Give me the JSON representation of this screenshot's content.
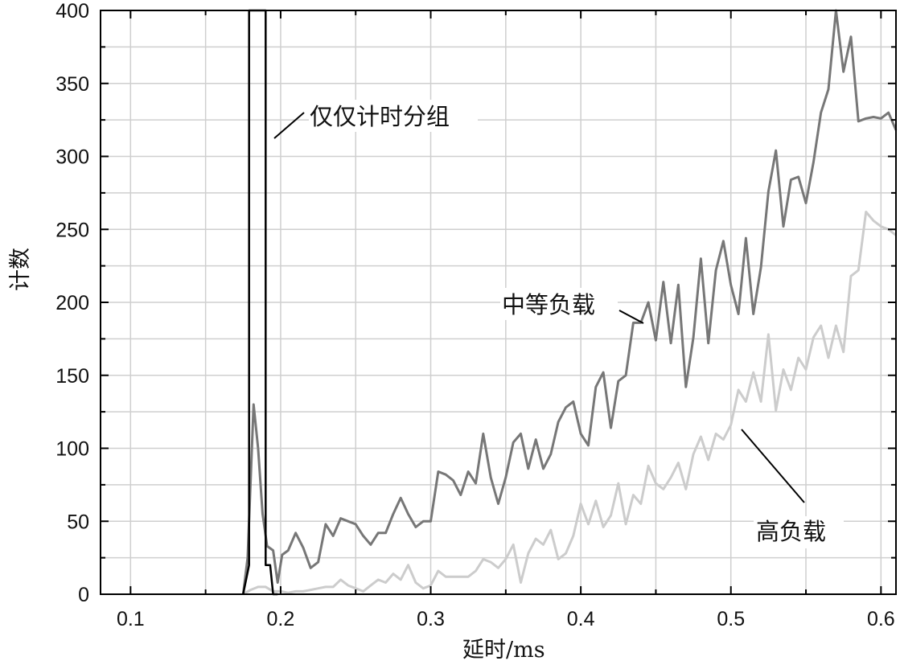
{
  "chart_data": {
    "type": "line",
    "xlabel": "延时/ms",
    "ylabel": "计数",
    "xlim": [
      0.08,
      0.61
    ],
    "ylim": [
      0,
      400
    ],
    "grid": true,
    "x_ticks": [
      0.1,
      0.2,
      0.3,
      0.4,
      0.5,
      0.6
    ],
    "x_tick_labels": [
      "0.1",
      "0.2",
      "0.3",
      "0.4",
      "0.5",
      "0.6"
    ],
    "y_ticks": [
      0,
      50,
      100,
      150,
      200,
      250,
      300,
      350,
      400
    ],
    "y_tick_labels": [
      "0",
      "50",
      "100",
      "150",
      "200",
      "250",
      "300",
      "350",
      "400"
    ],
    "series": [
      {
        "name": "仅仅计时分组",
        "color": "#000000",
        "x": [
          0.175,
          0.179,
          0.179,
          0.184,
          0.189,
          0.19,
          0.19,
          0.193,
          0.195,
          0.198
        ],
        "y": [
          0,
          20,
          400,
          400,
          400,
          400,
          20,
          20,
          0,
          0
        ]
      },
      {
        "name": "中等负载",
        "color": "#777777",
        "x": [
          0.175,
          0.178,
          0.182,
          0.185,
          0.188,
          0.191,
          0.195,
          0.198,
          0.201,
          0.205,
          0.21,
          0.215,
          0.22,
          0.225,
          0.23,
          0.235,
          0.24,
          0.245,
          0.25,
          0.255,
          0.26,
          0.265,
          0.27,
          0.275,
          0.28,
          0.285,
          0.29,
          0.295,
          0.3,
          0.305,
          0.31,
          0.315,
          0.32,
          0.325,
          0.33,
          0.335,
          0.34,
          0.345,
          0.35,
          0.355,
          0.36,
          0.365,
          0.37,
          0.375,
          0.38,
          0.385,
          0.39,
          0.395,
          0.4,
          0.405,
          0.41,
          0.415,
          0.42,
          0.425,
          0.43,
          0.435,
          0.44,
          0.445,
          0.45,
          0.455,
          0.46,
          0.465,
          0.47,
          0.475,
          0.48,
          0.485,
          0.49,
          0.495,
          0.5,
          0.505,
          0.51,
          0.515,
          0.52,
          0.525,
          0.53,
          0.535,
          0.54,
          0.545,
          0.55,
          0.555,
          0.56,
          0.565,
          0.57,
          0.575,
          0.58,
          0.585,
          0.59,
          0.595,
          0.6,
          0.605,
          0.61
        ],
        "y": [
          0,
          25,
          130,
          100,
          55,
          33,
          30,
          8,
          27,
          30,
          42,
          32,
          18,
          22,
          48,
          40,
          52,
          50,
          48,
          40,
          34,
          42,
          42,
          55,
          66,
          55,
          46,
          50,
          50,
          84,
          82,
          78,
          68,
          84,
          76,
          110,
          80,
          62,
          80,
          104,
          110,
          86,
          106,
          86,
          96,
          118,
          128,
          132,
          110,
          102,
          142,
          152,
          114,
          146,
          150,
          186,
          186,
          200,
          174,
          214,
          172,
          212,
          142,
          176,
          230,
          172,
          222,
          242,
          212,
          192,
          244,
          192,
          224,
          276,
          304,
          252,
          284,
          286,
          268,
          296,
          330,
          346,
          400,
          358,
          382,
          324,
          326,
          327,
          326,
          330,
          318
        ]
      },
      {
        "name": "高负载",
        "color": "#cccccc",
        "x": [
          0.175,
          0.18,
          0.185,
          0.19,
          0.195,
          0.2,
          0.205,
          0.21,
          0.215,
          0.22,
          0.225,
          0.23,
          0.235,
          0.24,
          0.245,
          0.25,
          0.255,
          0.26,
          0.265,
          0.27,
          0.275,
          0.28,
          0.285,
          0.29,
          0.295,
          0.3,
          0.305,
          0.31,
          0.315,
          0.32,
          0.325,
          0.33,
          0.335,
          0.34,
          0.345,
          0.35,
          0.355,
          0.36,
          0.365,
          0.37,
          0.375,
          0.38,
          0.385,
          0.39,
          0.395,
          0.4,
          0.405,
          0.41,
          0.415,
          0.42,
          0.425,
          0.43,
          0.435,
          0.44,
          0.445,
          0.45,
          0.455,
          0.46,
          0.465,
          0.47,
          0.475,
          0.48,
          0.485,
          0.49,
          0.495,
          0.5,
          0.505,
          0.51,
          0.515,
          0.52,
          0.525,
          0.53,
          0.535,
          0.54,
          0.545,
          0.55,
          0.555,
          0.56,
          0.565,
          0.57,
          0.575,
          0.58,
          0.585,
          0.59,
          0.595,
          0.6,
          0.605,
          0.61
        ],
        "y": [
          0,
          3,
          5,
          5,
          2,
          2,
          1,
          2,
          2,
          3,
          4,
          5,
          5,
          10,
          6,
          4,
          2,
          6,
          10,
          8,
          14,
          10,
          20,
          8,
          4,
          6,
          16,
          12,
          12,
          12,
          12,
          16,
          24,
          22,
          18,
          24,
          34,
          8,
          28,
          38,
          34,
          44,
          24,
          28,
          40,
          62,
          48,
          64,
          46,
          54,
          76,
          48,
          68,
          62,
          88,
          76,
          72,
          80,
          90,
          72,
          96,
          108,
          92,
          110,
          106,
          116,
          140,
          132,
          152,
          132,
          178,
          126,
          154,
          140,
          162,
          154,
          176,
          184,
          162,
          184,
          166,
          218,
          222,
          262,
          256,
          252,
          250,
          246
        ]
      }
    ],
    "annotations": [
      {
        "text": "仅仅计时分组",
        "series": "仅仅计时分组"
      },
      {
        "text": "中等负载",
        "series": "中等负载"
      },
      {
        "text": "高负载",
        "series": "高负载"
      }
    ]
  }
}
